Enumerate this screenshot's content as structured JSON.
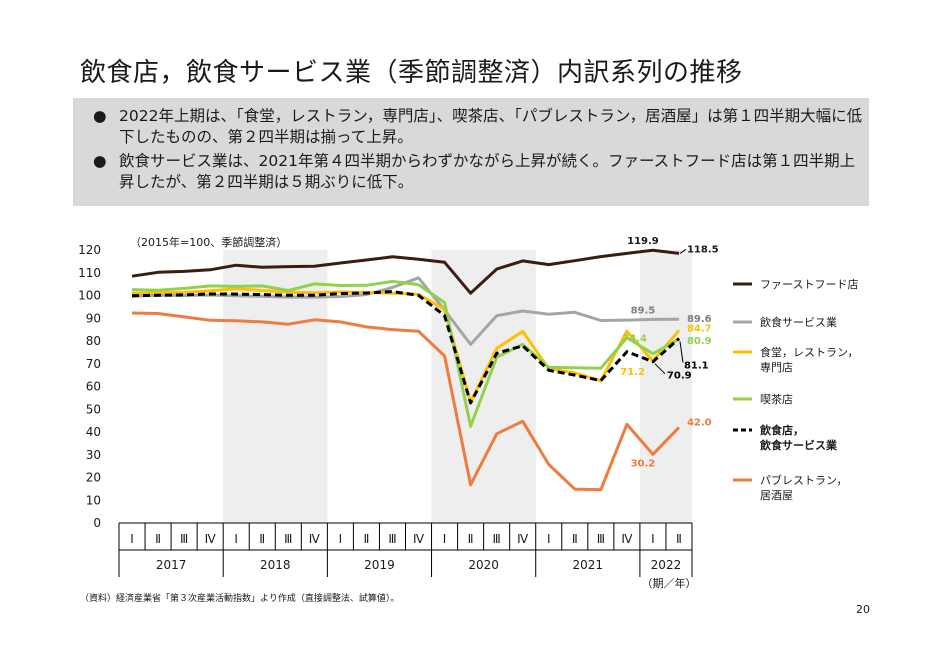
{
  "title": "飲食店，飲食サービス業（季節調整済）内訳系列の推移",
  "bullets": [
    {
      "mark": "●",
      "text": "2022年上期は、「食堂，レストラン，専門店」、喫茶店、「パブレストラン，居酒屋」は第１四半期大幅に低下したものの、第２四半期は揃って上昇。"
    },
    {
      "mark": "●",
      "text": "飲食サービス業は、2021年第４四半期からわずかながら上昇が続く。ファーストフード店は第１四半期上昇したが、第２四半期は５期ぶりに低下。"
    }
  ],
  "source": "（資料）経済産業省「第３次産業活動指数」より作成（直接調整法、試算値）。",
  "page_number": "20",
  "chart_data": {
    "type": "line",
    "note": "（2015年=100、季節調整済）",
    "x_unit": "（期／年）",
    "ylim": [
      0,
      120
    ],
    "yticks": [
      0,
      10,
      20,
      30,
      40,
      50,
      60,
      70,
      80,
      90,
      100,
      110,
      120
    ],
    "quarters": [
      "Ⅰ",
      "Ⅱ",
      "Ⅲ",
      "Ⅳ",
      "Ⅰ",
      "Ⅱ",
      "Ⅲ",
      "Ⅳ",
      "Ⅰ",
      "Ⅱ",
      "Ⅲ",
      "Ⅳ",
      "Ⅰ",
      "Ⅱ",
      "Ⅲ",
      "Ⅳ",
      "Ⅰ",
      "Ⅱ",
      "Ⅲ",
      "Ⅳ",
      "Ⅰ",
      "Ⅱ"
    ],
    "years": [
      {
        "label": "2017",
        "start": 0,
        "count": 4,
        "shaded": false
      },
      {
        "label": "2018",
        "start": 4,
        "count": 4,
        "shaded": true
      },
      {
        "label": "2019",
        "start": 8,
        "count": 4,
        "shaded": false
      },
      {
        "label": "2020",
        "start": 12,
        "count": 4,
        "shaded": true
      },
      {
        "label": "2021",
        "start": 16,
        "count": 4,
        "shaded": false
      },
      {
        "label": "2022",
        "start": 20,
        "count": 2,
        "shaded": true
      }
    ],
    "grid": false,
    "legend_position": "right",
    "series": [
      {
        "name": "ファーストフード店",
        "color": "#3b1c10",
        "dash": false,
        "bold": false,
        "values": [
          108.5,
          110.2,
          110.6,
          111.3,
          113.3,
          112.4,
          112.7,
          112.9,
          114.3,
          115.6,
          117.0,
          115.9,
          114.6,
          101.0,
          111.6,
          115.2,
          113.6,
          115.3,
          117.1,
          118.5,
          119.9,
          118.5
        ]
      },
      {
        "name": "飲食サービス業",
        "color": "#a5a5a5",
        "dash": false,
        "bold": false,
        "values": [
          99.7,
          100.1,
          100.0,
          100.2,
          99.9,
          99.6,
          99.3,
          99.3,
          99.5,
          100.4,
          103.5,
          107.8,
          93.6,
          78.5,
          91.1,
          93.2,
          91.8,
          92.6,
          89.0,
          89.2,
          89.5,
          89.6
        ]
      },
      {
        "name": "食堂，レストラン，専門店",
        "color": "#ffc000",
        "dash": false,
        "bold": false,
        "values": [
          101.0,
          101.1,
          101.4,
          102.1,
          103.0,
          102.2,
          101.5,
          101.2,
          101.6,
          101.3,
          101.0,
          100.5,
          93.9,
          53.0,
          76.8,
          84.2,
          67.8,
          66.0,
          62.5,
          84.3,
          71.2,
          84.7
        ]
      },
      {
        "name": "喫茶店",
        "color": "#92d050",
        "dash": false,
        "bold": false,
        "values": [
          102.6,
          102.3,
          103.1,
          104.2,
          104.0,
          104.2,
          102.2,
          105.1,
          104.4,
          104.5,
          106.2,
          104.8,
          96.9,
          42.5,
          72.9,
          78.5,
          68.4,
          68.2,
          68.0,
          81.5,
          74.4,
          80.9
        ]
      },
      {
        "name": "飲食店，飲食サービス業",
        "color": "#000000",
        "dash": true,
        "bold": true,
        "values": [
          99.9,
          100.1,
          100.3,
          100.7,
          100.6,
          100.4,
          100.1,
          100.1,
          100.9,
          101.1,
          101.7,
          100.1,
          91.1,
          52.8,
          74.6,
          77.9,
          67.1,
          65.0,
          62.6,
          75.3,
          70.9,
          81.1
        ]
      },
      {
        "name": "パブレストラン，居酒屋",
        "color": "#f07b3f",
        "dash": false,
        "bold": false,
        "values": [
          92.3,
          92.1,
          90.6,
          89.1,
          88.9,
          88.4,
          87.4,
          89.3,
          88.4,
          86.2,
          85.0,
          84.3,
          73.4,
          16.8,
          39.2,
          44.7,
          25.7,
          14.9,
          14.6,
          43.4,
          30.2,
          42.0
        ]
      }
    ],
    "annotations": [
      {
        "text": "119.9",
        "x": 20,
        "y": 119.9,
        "color": "#1a1a1a"
      },
      {
        "text": "118.5",
        "x": 21,
        "y": 118.5,
        "color": "#1a1a1a"
      },
      {
        "text": "89.5",
        "x": 20,
        "y": 89.5,
        "color": "#7f7f7f"
      },
      {
        "text": "89.6",
        "x": 21,
        "y": 89.6,
        "color": "#7f7f7f"
      },
      {
        "text": "84.7",
        "x": 21,
        "y": 84.7,
        "color": "#ffc000"
      },
      {
        "text": "80.9",
        "x": 21,
        "y": 80.9,
        "color": "#92d050"
      },
      {
        "text": "74.4",
        "x": 20,
        "y": 74.4,
        "color": "#92d050"
      },
      {
        "text": "71.2",
        "x": 20,
        "y": 71.2,
        "color": "#ffc000"
      },
      {
        "text": "70.9",
        "x": 20,
        "y": 70.9,
        "color": "#000000"
      },
      {
        "text": "81.1",
        "x": 21,
        "y": 81.1,
        "color": "#000000"
      },
      {
        "text": "30.2",
        "x": 20,
        "y": 30.2,
        "color": "#f07b3f"
      },
      {
        "text": "42.0",
        "x": 21,
        "y": 42.0,
        "color": "#f07b3f"
      }
    ]
  }
}
